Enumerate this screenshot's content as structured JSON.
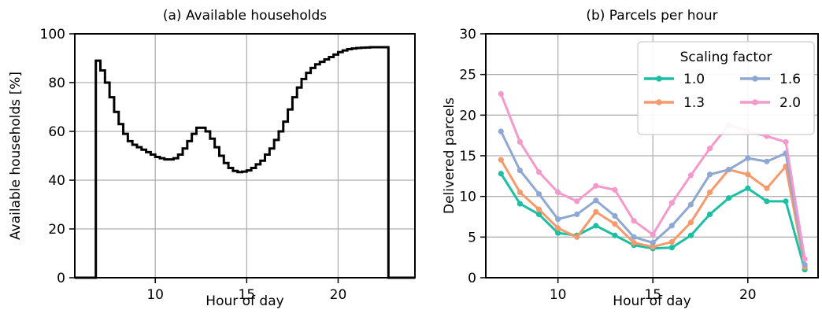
{
  "chart_data": [
    {
      "type": "line",
      "title": "(a) Available households",
      "xlabel": "Hour of day",
      "ylabel": "Available households [%]",
      "xlim": [
        5.6,
        24.2
      ],
      "ylim": [
        0,
        100
      ],
      "xticks": [
        10,
        15,
        20
      ],
      "yticks": [
        0,
        20,
        40,
        60,
        80,
        100
      ],
      "grid": true,
      "step": true,
      "series": [
        {
          "color": "#000000",
          "x": [
            5.6,
            6.75,
            6.75,
            7.0,
            7.25,
            7.5,
            7.75,
            8.0,
            8.25,
            8.5,
            8.75,
            9.0,
            9.25,
            9.5,
            9.75,
            10.0,
            10.25,
            10.5,
            10.75,
            11.0,
            11.25,
            11.5,
            11.75,
            12.0,
            12.25,
            12.5,
            12.75,
            13.0,
            13.25,
            13.5,
            13.75,
            14.0,
            14.25,
            14.5,
            14.75,
            15.0,
            15.25,
            15.5,
            15.75,
            16.0,
            16.25,
            16.5,
            16.75,
            17.0,
            17.25,
            17.5,
            17.75,
            18.0,
            18.25,
            18.5,
            18.75,
            19.0,
            19.25,
            19.5,
            19.75,
            20.0,
            20.25,
            20.5,
            20.75,
            21.0,
            21.25,
            21.5,
            21.75,
            22.0,
            22.25,
            22.5,
            22.75,
            22.75,
            24.2
          ],
          "y": [
            0,
            0,
            89,
            85,
            80,
            74,
            68,
            63,
            59,
            56,
            54.5,
            53.5,
            52.5,
            51.5,
            50.5,
            49.5,
            49,
            48.5,
            48.5,
            49,
            50.5,
            53,
            56,
            59,
            61.5,
            61.5,
            60,
            57,
            53.5,
            50,
            47,
            45,
            43.8,
            43.3,
            43.5,
            44,
            45,
            46.5,
            48,
            50.5,
            53,
            56.5,
            60,
            64,
            69,
            74,
            78,
            81.5,
            84,
            86,
            87.5,
            88.5,
            89.5,
            90.5,
            91.5,
            92.5,
            93.2,
            93.7,
            94,
            94.2,
            94.3,
            94.4,
            94.5,
            94.5,
            94.5,
            94.5,
            94.5,
            0,
            0
          ]
        }
      ]
    },
    {
      "type": "line",
      "title": "(b) Parcels per hour",
      "xlabel": "Hour of day",
      "ylabel": "Delivered parcels",
      "xlim": [
        6.2,
        23.7
      ],
      "ylim": [
        0,
        30
      ],
      "xticks": [
        10,
        15,
        20
      ],
      "yticks": [
        0,
        5,
        10,
        15,
        20,
        25,
        30
      ],
      "grid": true,
      "x": [
        7,
        8,
        9,
        10,
        11,
        12,
        13,
        14,
        15,
        16,
        17,
        18,
        19,
        20,
        21,
        22,
        23
      ],
      "legend": {
        "title": "Scaling factor",
        "placement": "top-right",
        "columns": 2
      },
      "series": [
        {
          "name": "1.0",
          "color": "#1bc0a4",
          "values": [
            12.8,
            9.1,
            7.8,
            5.5,
            5.2,
            6.4,
            5.2,
            4.0,
            3.6,
            3.7,
            5.2,
            7.8,
            9.8,
            11.0,
            9.4,
            9.4,
            1.0
          ]
        },
        {
          "name": "1.3",
          "color": "#f69a6b",
          "values": [
            14.5,
            10.5,
            8.4,
            6.1,
            5.0,
            8.1,
            6.6,
            4.3,
            3.8,
            4.4,
            6.8,
            10.5,
            13.3,
            12.7,
            11.0,
            13.7,
            1.3
          ]
        },
        {
          "name": "1.6",
          "color": "#8ea8d3",
          "values": [
            18.0,
            13.2,
            10.3,
            7.2,
            7.8,
            9.5,
            7.6,
            5.0,
            4.3,
            6.4,
            9.0,
            12.7,
            13.3,
            14.7,
            14.3,
            15.3,
            1.6
          ]
        },
        {
          "name": "2.0",
          "color": "#f599cc",
          "values": [
            22.6,
            16.7,
            13.0,
            10.5,
            9.4,
            11.3,
            10.8,
            7.0,
            5.3,
            9.2,
            12.6,
            15.9,
            18.8,
            18.0,
            17.4,
            16.7,
            2.3
          ]
        }
      ]
    }
  ]
}
